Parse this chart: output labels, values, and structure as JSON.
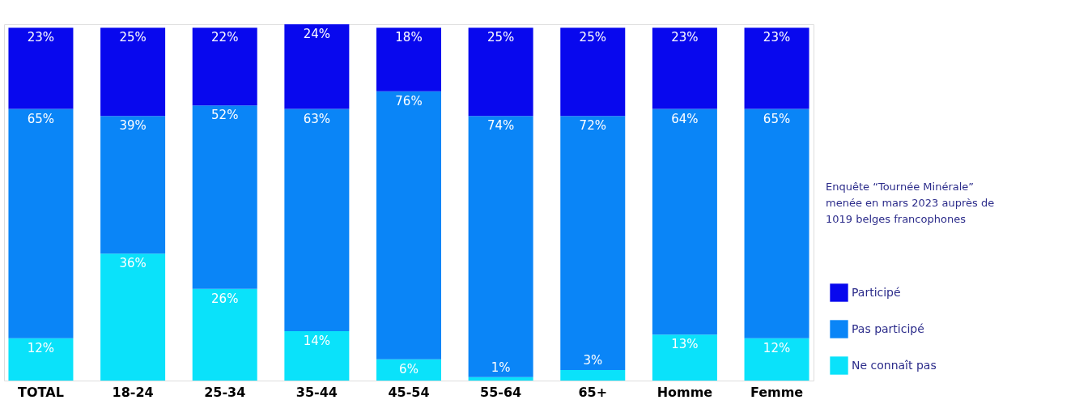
{
  "chart_data": {
    "type": "bar",
    "stacked": true,
    "legend": "right",
    "categories": [
      "TOTAL",
      "18-24",
      "25-34",
      "35-44",
      "45-54",
      "55-64",
      "65+",
      "Homme",
      "Femme"
    ],
    "series": [
      {
        "name": "Ne connaît pas",
        "color": "#0ae2fa",
        "values": [
          12,
          36,
          26,
          14,
          6,
          1,
          3,
          13,
          12
        ],
        "value_labels": [
          "12%",
          "36%",
          "26%",
          "14%",
          "6%",
          "1%",
          "3%",
          "13%",
          "12%"
        ]
      },
      {
        "name": "Pas participé",
        "color": "#0a85f7",
        "values": [
          65,
          39,
          52,
          63,
          76,
          74,
          72,
          64,
          65
        ],
        "value_labels": [
          "65%",
          "39%",
          "52%",
          "63%",
          "76%",
          "74%",
          "72%",
          "64%",
          "65%"
        ]
      },
      {
        "name": "Participé",
        "color": "#0808ee",
        "values": [
          23,
          25,
          22,
          24,
          18,
          25,
          25,
          23,
          23
        ],
        "value_labels": [
          "23%",
          "25%",
          "22%",
          "24%",
          "18%",
          "25%",
          "25%",
          "23%",
          "23%"
        ]
      }
    ],
    "annotations": [
      "Enquête “Tournée Minérale” menée en mars 2023 auprès de 1019 belges francophones"
    ]
  }
}
